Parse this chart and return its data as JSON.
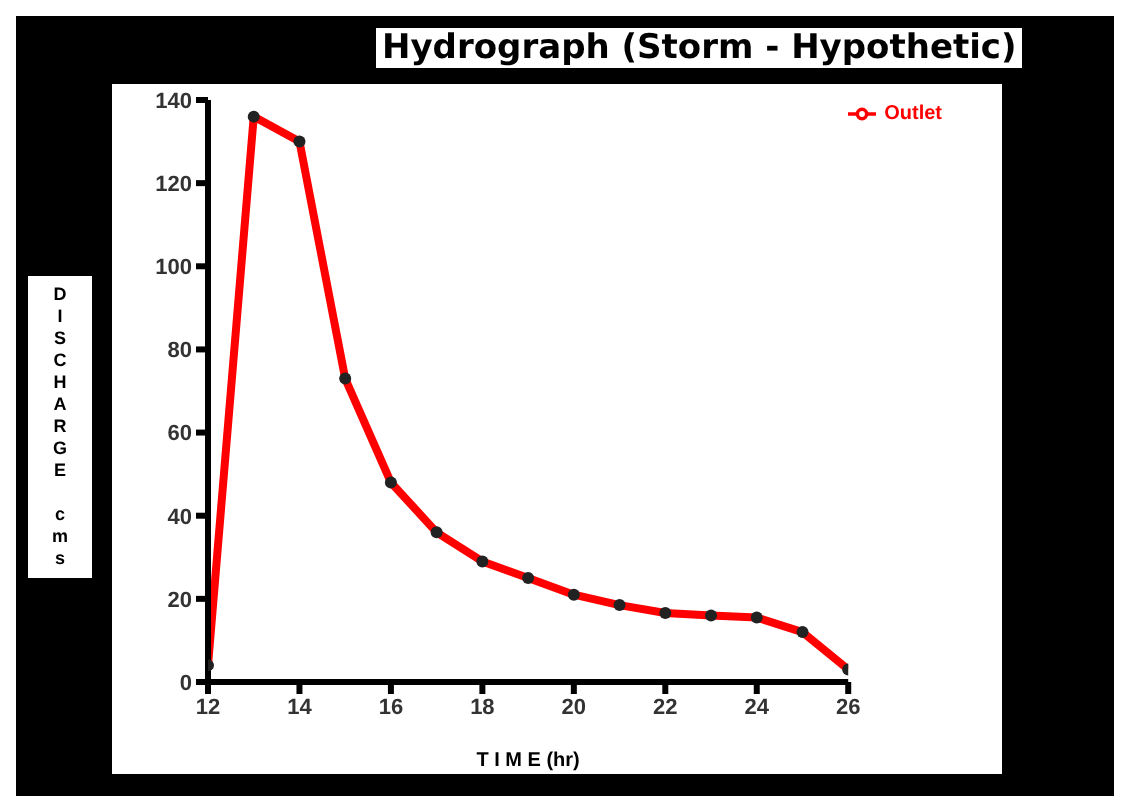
{
  "chart_data": {
    "type": "line",
    "title": "Hydrograph (Storm - Hypothetic)",
    "xlabel": "T I M E (hr)",
    "ylabel": "DISCHARGE cms",
    "x": [
      12,
      13,
      14,
      15,
      16,
      17,
      18,
      19,
      20,
      21,
      22,
      23,
      24,
      25,
      26
    ],
    "series": [
      {
        "name": "Outlet",
        "color": "#ff0000",
        "values": [
          4,
          136,
          130,
          73,
          48,
          36,
          29,
          25,
          21,
          18.5,
          16.6,
          16,
          15.5,
          12,
          3
        ]
      }
    ],
    "xlim": [
      12,
      26
    ],
    "xticks": [
      12,
      14,
      16,
      18,
      20,
      22,
      24,
      26
    ],
    "ylim": [
      0,
      140
    ],
    "yticks": [
      0,
      20,
      40,
      60,
      80,
      100,
      120,
      140
    ],
    "grid": false,
    "legend": "right",
    "marker": "circle",
    "line_style": "solid"
  }
}
